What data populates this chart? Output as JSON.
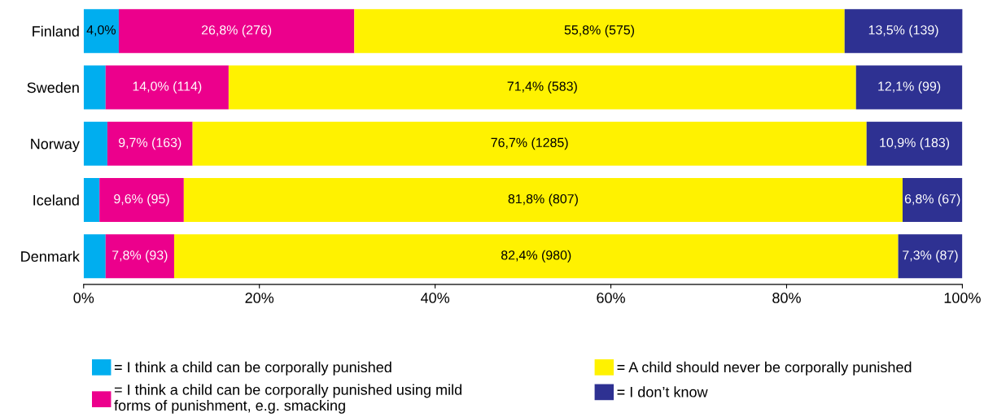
{
  "chart_data": {
    "type": "bar",
    "orientation": "horizontal",
    "stacked": true,
    "categories": [
      "Finland",
      "Sweden",
      "Norway",
      "Iceland",
      "Denmark"
    ],
    "series": [
      {
        "name": "= I think a child can be corporally punished",
        "color": "#00aeef",
        "values": [
          4.0,
          2.5,
          2.7,
          1.8,
          2.5
        ],
        "value_labels": [
          "4,0%",
          null,
          null,
          null,
          null
        ]
      },
      {
        "name": "= I think a child can be corporally punished using mild\nforms of punishment, e.g. smacking",
        "color": "#ec008c",
        "values": [
          26.8,
          14.0,
          9.7,
          9.6,
          7.8
        ],
        "value_labels": [
          "26,8% (276)",
          "14,0% (114)",
          "9,7% (163)",
          "9,6% (95)",
          "7,8% (93)"
        ]
      },
      {
        "name": "= A child should never be corporally punished",
        "color": "#fff200",
        "values": [
          55.8,
          71.4,
          76.7,
          81.8,
          82.4
        ],
        "value_labels": [
          "55,8% (575)",
          "71,4% (583)",
          "76,7% (1285)",
          "81,8% (807)",
          "82,4% (980)"
        ]
      },
      {
        "name": "= I don’t know",
        "color": "#2e3192",
        "values": [
          13.5,
          12.1,
          10.9,
          6.8,
          7.3
        ],
        "value_labels": [
          "13,5% (139)",
          "12,1% (99)",
          "10,9% (183)",
          "6,8% (67)",
          "7,3% (87)"
        ]
      }
    ],
    "xlim": [
      0,
      100
    ],
    "xticks": [
      {
        "value": 0,
        "label": "0%"
      },
      {
        "value": 20,
        "label": "20%"
      },
      {
        "value": 40,
        "label": "40%"
      },
      {
        "value": 60,
        "label": "60%"
      },
      {
        "value": 80,
        "label": "80%"
      },
      {
        "value": 100,
        "label": "100%"
      }
    ],
    "grid": false,
    "legend": "bottom"
  }
}
